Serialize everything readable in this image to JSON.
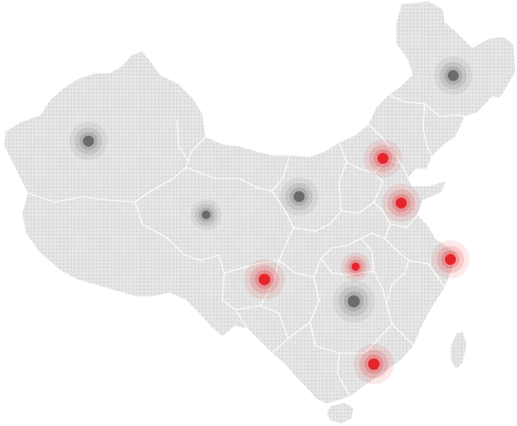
{
  "map": {
    "region": "china",
    "style": "dotted-gray",
    "base_color": "#e4e4e4",
    "dot_color": "#d2d2d2",
    "border_color": "#ffffff"
  },
  "legend_colors": {
    "active": "#e5242b",
    "inactive": "#6b6b6b"
  },
  "markers": [
    {
      "id": "harbin",
      "status": "inactive"
    },
    {
      "id": "urumqi",
      "status": "inactive"
    },
    {
      "id": "beijing",
      "status": "active"
    },
    {
      "id": "lanzhou",
      "status": "inactive"
    },
    {
      "id": "xining",
      "status": "inactive"
    },
    {
      "id": "jinan",
      "status": "active"
    },
    {
      "id": "shanghai",
      "status": "active"
    },
    {
      "id": "wuhan",
      "status": "active"
    },
    {
      "id": "chengdu",
      "status": "active"
    },
    {
      "id": "changsha",
      "status": "inactive"
    },
    {
      "id": "shenzhen",
      "status": "active"
    }
  ]
}
